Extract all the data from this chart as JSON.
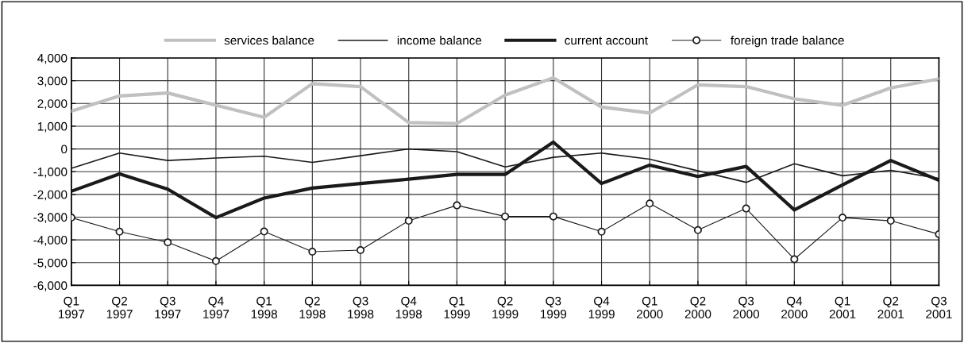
{
  "chart_data": {
    "type": "line",
    "categories": [
      "Q1\n1997",
      "Q2\n1997",
      "Q3\n1997",
      "Q4\n1997",
      "Q1\n1998",
      "Q2\n1998",
      "Q3\n1998",
      "Q4\n1998",
      "Q1\n1999",
      "Q2\n1999",
      "Q3\n1999",
      "Q4\n1999",
      "Q1\n2000",
      "Q2\n2000",
      "Q3\n2000",
      "Q4\n2000",
      "Q1\n2001",
      "Q2\n2001",
      "Q3\n2001"
    ],
    "series": [
      {
        "name": "services balance",
        "color": "#c0c0c0",
        "marker": "none",
        "values": [
          1660,
          2330,
          2460,
          1920,
          1390,
          2870,
          2740,
          1160,
          1120,
          2370,
          3130,
          1840,
          1580,
          2820,
          2740,
          2200,
          1920,
          2680,
          3080
        ]
      },
      {
        "name": "income balance",
        "color": "#1a1a1a",
        "marker": "none",
        "values": [
          -850,
          -180,
          -510,
          -400,
          -320,
          -590,
          -300,
          0,
          -120,
          -790,
          -370,
          -180,
          -450,
          -960,
          -1470,
          -650,
          -1180,
          -940,
          -1300
        ]
      },
      {
        "name": "current account",
        "color": "#1a1a1a",
        "marker": "none",
        "values": [
          -1860,
          -1100,
          -1770,
          -3020,
          -2160,
          -1720,
          -1520,
          -1330,
          -1120,
          -1120,
          300,
          -1520,
          -710,
          -1210,
          -770,
          -2680,
          -1580,
          -510,
          -1380
        ]
      },
      {
        "name": "foreign trade balance",
        "color": "#1a1a1a",
        "marker": "circle",
        "values": [
          -3020,
          -3640,
          -4110,
          -4930,
          -3630,
          -4520,
          -4450,
          -3160,
          -2480,
          -2970,
          -2970,
          -3640,
          -2400,
          -3570,
          -2620,
          -4850,
          -3020,
          -3160,
          -3750
        ]
      }
    ],
    "ylim": [
      -6000,
      4000
    ],
    "yticks": [
      {
        "value": -6000,
        "label": "-6,000"
      },
      {
        "value": -5000,
        "label": "-5,000"
      },
      {
        "value": -4000,
        "label": "-4,000"
      },
      {
        "value": -3000,
        "label": "-3,000"
      },
      {
        "value": -2000,
        "label": "-2,000"
      },
      {
        "value": -1000,
        "label": "-1,000"
      },
      0,
      {
        "value": 1000,
        "label": "1,000"
      },
      {
        "value": 2000,
        "label": "2,000"
      },
      {
        "value": 3000,
        "label": "3,000"
      },
      {
        "value": 4000,
        "label": "4,000"
      }
    ],
    "grid": true,
    "legend": "top",
    "line_style": "solid"
  }
}
